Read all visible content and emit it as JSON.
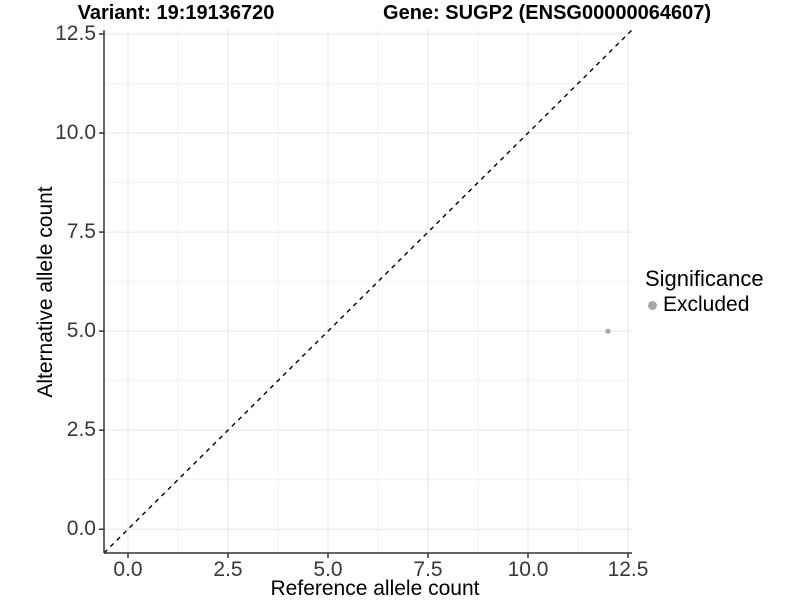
{
  "figure": {
    "background": "#ffffff"
  },
  "chart_data": {
    "type": "scatter",
    "titles": {
      "left": "Variant: 19:19136720",
      "right": "Gene: SUGP2 (ENSG00000064607)"
    },
    "xlabel": "Reference allele count",
    "ylabel": "Alternative allele count",
    "xlim": [
      -0.6,
      12.6
    ],
    "ylim": [
      -0.6,
      12.6
    ],
    "x_ticks": [
      0,
      2.5,
      5,
      7.5,
      10,
      12.5
    ],
    "y_ticks": [
      0,
      2.5,
      5,
      7.5,
      10,
      12.5
    ],
    "x_tick_labels": [
      "0.0",
      "2.5",
      "5.0",
      "7.5",
      "10.0",
      "12.5"
    ],
    "y_tick_labels": [
      "0.0",
      "2.5",
      "5.0",
      "7.5",
      "10.0",
      "12.5"
    ],
    "grid": "major+minor",
    "identity_line": {
      "type": "abline",
      "slope": 1,
      "intercept": 0,
      "style": "dashed"
    },
    "points": [
      {
        "x": 12,
        "y": 5,
        "series": "Excluded"
      }
    ],
    "legend": {
      "title": "Significance",
      "position": "right",
      "entries": [
        {
          "label": "Excluded",
          "color": "#a8a8a8"
        }
      ]
    },
    "colors": {
      "point": "#a8a8a8",
      "grid_major": "#e6e6e6",
      "grid_minor": "#f2f2f2",
      "axis": "#333333",
      "identity_line": "#000000",
      "tick_text": "#383838",
      "title_text": "#000000"
    }
  }
}
